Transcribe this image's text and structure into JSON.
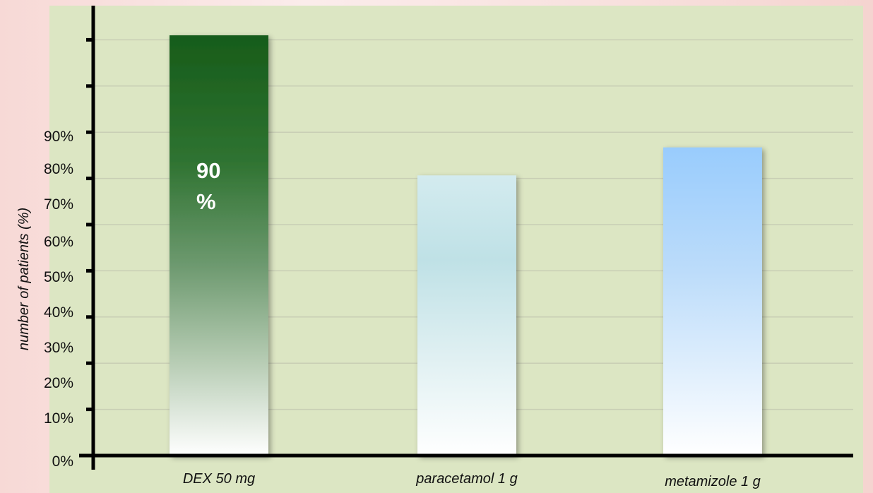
{
  "chart_data": {
    "type": "bar",
    "title": "",
    "xlabel": "",
    "ylabel": "number of patients (%)",
    "categories": [
      "DEX 50 mg",
      "paracetamol 1 g",
      "metamizole 1 g"
    ],
    "series": [
      {
        "values": [
          90,
          60,
          66
        ],
        "colors": [
          "#1a5e1c",
          "#c9e6ec",
          "#99ccff"
        ]
      }
    ],
    "ylim": [
      0,
      90
    ],
    "y_tick_labels": [
      "0%",
      "10%",
      "20%",
      "30%",
      "40%",
      "50%",
      "60%",
      "70%",
      "80%",
      "90%"
    ],
    "data_labels": [
      {
        "category": "DEX 50 mg",
        "lines": [
          "90",
          "%"
        ]
      }
    ],
    "grid": true,
    "plot_background": "#dce6c3",
    "legend": "none"
  }
}
